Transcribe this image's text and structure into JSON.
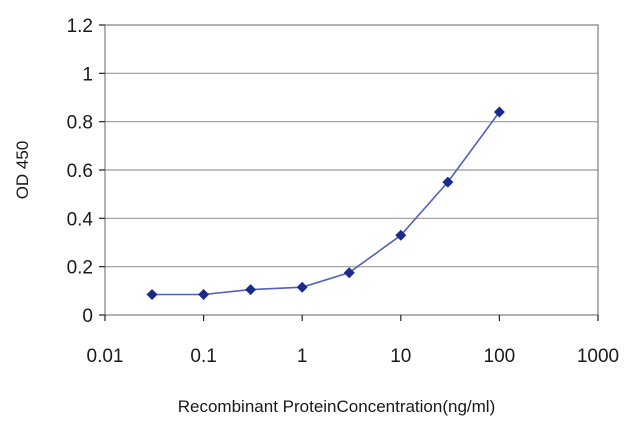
{
  "chart_data": {
    "type": "line",
    "title": "",
    "xlabel": "Recombinant ProteinConcentration(ng/ml)",
    "ylabel": "OD 450",
    "xscale": "log",
    "xlim": [
      0.01,
      1000
    ],
    "ylim": [
      0,
      1.2
    ],
    "x_ticks": [
      "0.01",
      "0.1",
      "1",
      "10",
      "100",
      "1000"
    ],
    "y_ticks": [
      "0",
      "0.2",
      "0.4",
      "0.6",
      "0.8",
      "1",
      "1.2"
    ],
    "grid": "horizontal",
    "legend": "none",
    "series": [
      {
        "x": [
          0.03,
          0.1,
          0.3,
          1,
          3,
          10,
          30,
          100
        ],
        "y": [
          0.085,
          0.085,
          0.105,
          0.115,
          0.175,
          0.33,
          0.55,
          0.84
        ]
      }
    ],
    "colors": {
      "line": "#5060c0",
      "marker": "#1a2a8a",
      "grid": "#999999",
      "frame": "#888888"
    }
  }
}
